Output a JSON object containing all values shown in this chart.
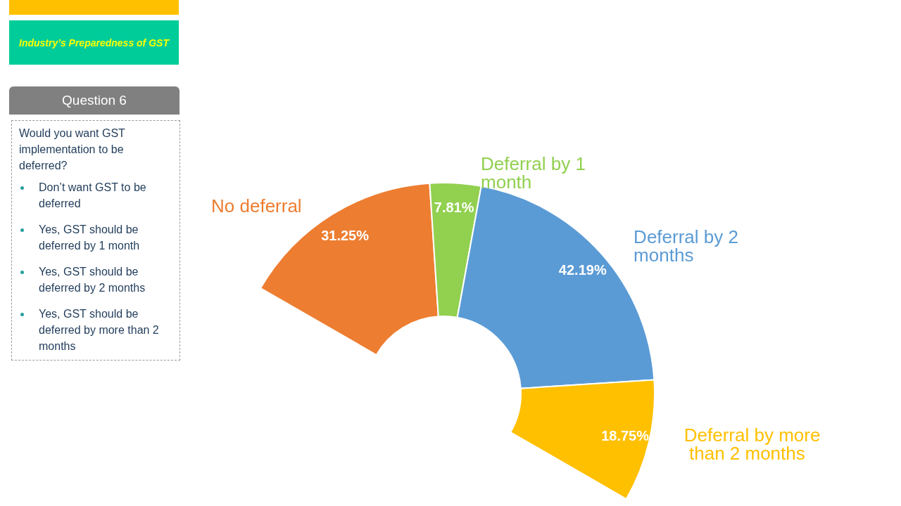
{
  "chart_data": {
    "type": "donut",
    "title": "Question 6",
    "subtitle": "Industry’s Preparedness of GST",
    "annotations": [
      "Would you want GST implementation to be deferred?",
      "Don’t want GST to be deferred",
      "Yes, GST should be deferred by 1 month",
      "Yes, GST should be deferred by 2 months",
      "Yes, GST should be deferred by more than 2 months"
    ],
    "categories": [
      "No deferral",
      "Deferral by 1 month",
      "Deferral by 2 months",
      "Deferral by more than 2 months"
    ],
    "values": [
      31.25,
      7.81,
      42.19,
      18.75
    ],
    "value_labels": [
      "31.25%",
      "7.81%",
      "42.19%",
      "18.75%"
    ],
    "colors": [
      "#ed7d31",
      "#92d050",
      "#5b9bd5",
      "#ffc000"
    ],
    "legend": false
  }
}
